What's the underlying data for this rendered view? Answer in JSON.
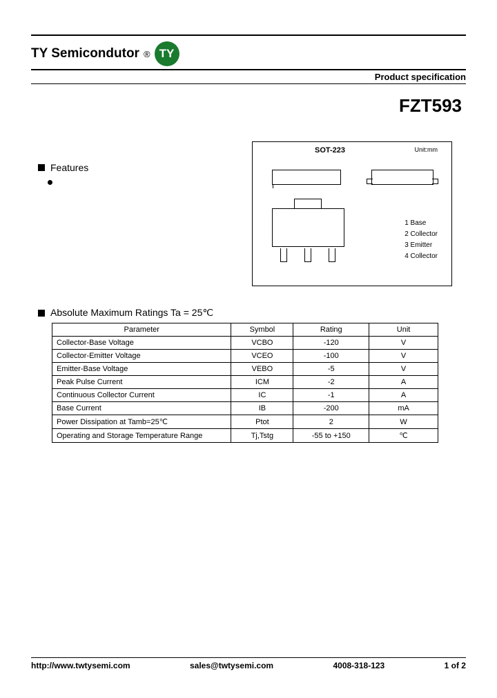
{
  "header": {
    "company": "TY Semicondutor",
    "registered": "®",
    "logo_text": "TY",
    "logo_bg": "#1a7a2e",
    "logo_fg": "#ffffff",
    "spec_label": "Product specification"
  },
  "part_number": "FZT593",
  "features": {
    "heading": "Features"
  },
  "package": {
    "title": "SOT-223",
    "unit_label": "Unit:mm",
    "pins": [
      {
        "num": "1",
        "name": "Base"
      },
      {
        "num": "2",
        "name": "Collector"
      },
      {
        "num": "3",
        "name": "Emitter"
      },
      {
        "num": "4",
        "name": "Collector"
      }
    ]
  },
  "ratings": {
    "heading": "Absolute Maximum Ratings Ta = 25℃",
    "columns": [
      "Parameter",
      "Symbol",
      "Rating",
      "Unit"
    ],
    "rows": [
      [
        "Collector-Base Voltage",
        "VCBO",
        "-120",
        "V"
      ],
      [
        "Collector-Emitter Voltage",
        "VCEO",
        "-100",
        "V"
      ],
      [
        "Emitter-Base Voltage",
        "VEBO",
        "-5",
        "V"
      ],
      [
        "Peak Pulse Current",
        "ICM",
        "-2",
        "A"
      ],
      [
        "Continuous Collector Current",
        "IC",
        "-1",
        "A"
      ],
      [
        "Base Current",
        "IB",
        "-200",
        "mA"
      ],
      [
        "Power Dissipation at Tamb=25℃",
        "Ptot",
        "2",
        "W"
      ],
      [
        "Operating and Storage Temperature Range",
        "Tj,Tstg",
        "-55 to +150",
        "℃"
      ]
    ],
    "col_widths": [
      "260px",
      "90px",
      "110px",
      "100px"
    ]
  },
  "footer": {
    "url": "http://www.twtysemi.com",
    "email": "sales@twtysemi.com",
    "phone": "4008-318-123",
    "page": "1 of 2"
  }
}
